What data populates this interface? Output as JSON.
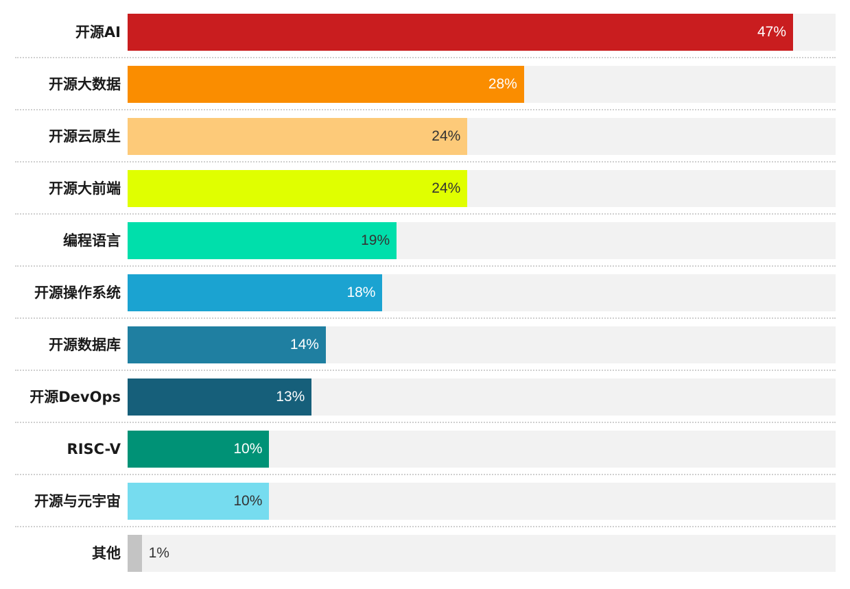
{
  "chart_data": {
    "type": "bar",
    "orientation": "horizontal",
    "title": "",
    "xlabel": "",
    "ylabel": "",
    "xlim": [
      0,
      50
    ],
    "grid": false,
    "legend": "none",
    "categories": [
      "开源AI",
      "开源大数据",
      "开源云原生",
      "开源大前端",
      "编程语言",
      "开源操作系统",
      "开源数据库",
      "开源DevOps",
      "RISC-V",
      "开源与元宇宙",
      "其他"
    ],
    "values": [
      47,
      28,
      24,
      24,
      19,
      18,
      14,
      13,
      10,
      10,
      1
    ],
    "value_labels": [
      "47%",
      "28%",
      "24%",
      "24%",
      "19%",
      "18%",
      "14%",
      "13%",
      "10%",
      "10%",
      "1%"
    ],
    "colors": [
      "#c91d1f",
      "#fa8d00",
      "#fdca79",
      "#e0ff00",
      "#00dfab",
      "#1ba3d1",
      "#1f7fa1",
      "#165f7a",
      "#009276",
      "#76dcef",
      "#c4c4c4"
    ],
    "label_colors": [
      "#ffffff",
      "#ffffff",
      "#333333",
      "#333333",
      "#333333",
      "#ffffff",
      "#ffffff",
      "#ffffff",
      "#ffffff",
      "#333333",
      "#333333"
    ],
    "track_color": "#f2f2f2"
  }
}
